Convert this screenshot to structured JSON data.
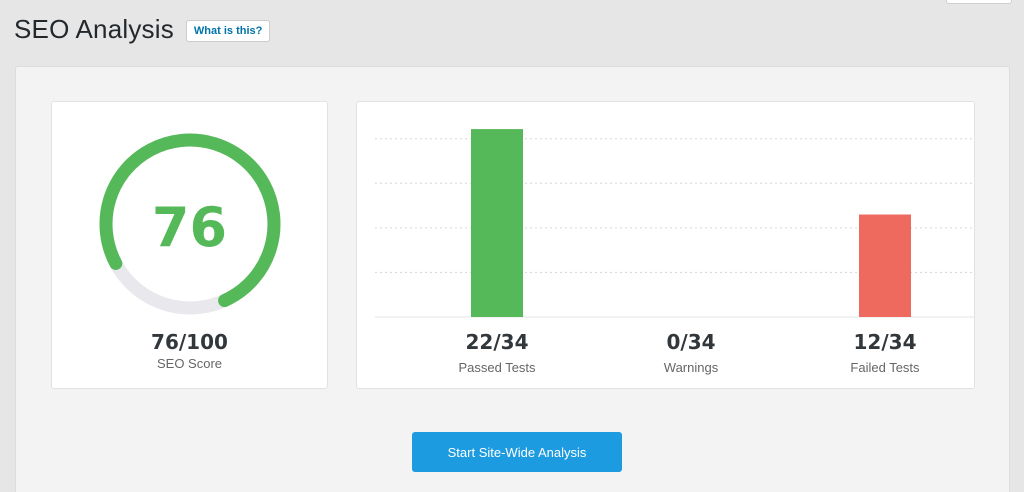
{
  "header": {
    "title": "SEO Analysis",
    "help_label": "What is this?"
  },
  "score": {
    "number": "76",
    "value_text": "76/100",
    "label": "SEO Score",
    "fraction": 0.76,
    "color": "#55b959",
    "track_color": "#e8e8ed"
  },
  "stats": [
    {
      "value_text": "22/34",
      "label": "Passed Tests",
      "color": "#55b959"
    },
    {
      "value_text": "0/34",
      "label": "Warnings",
      "color": "#f0ad4e"
    },
    {
      "value_text": "12/34",
      "label": "Failed Tests",
      "color": "#ee6a5f"
    }
  ],
  "chart_data": {
    "type": "bar",
    "categories": [
      "Passed Tests",
      "Warnings",
      "Failed Tests"
    ],
    "values": [
      22,
      0,
      12
    ],
    "ylim": [
      0,
      24
    ],
    "grid": true
  },
  "actions": {
    "start_label": "Start Site-Wide Analysis",
    "color": "#1d9be0"
  }
}
